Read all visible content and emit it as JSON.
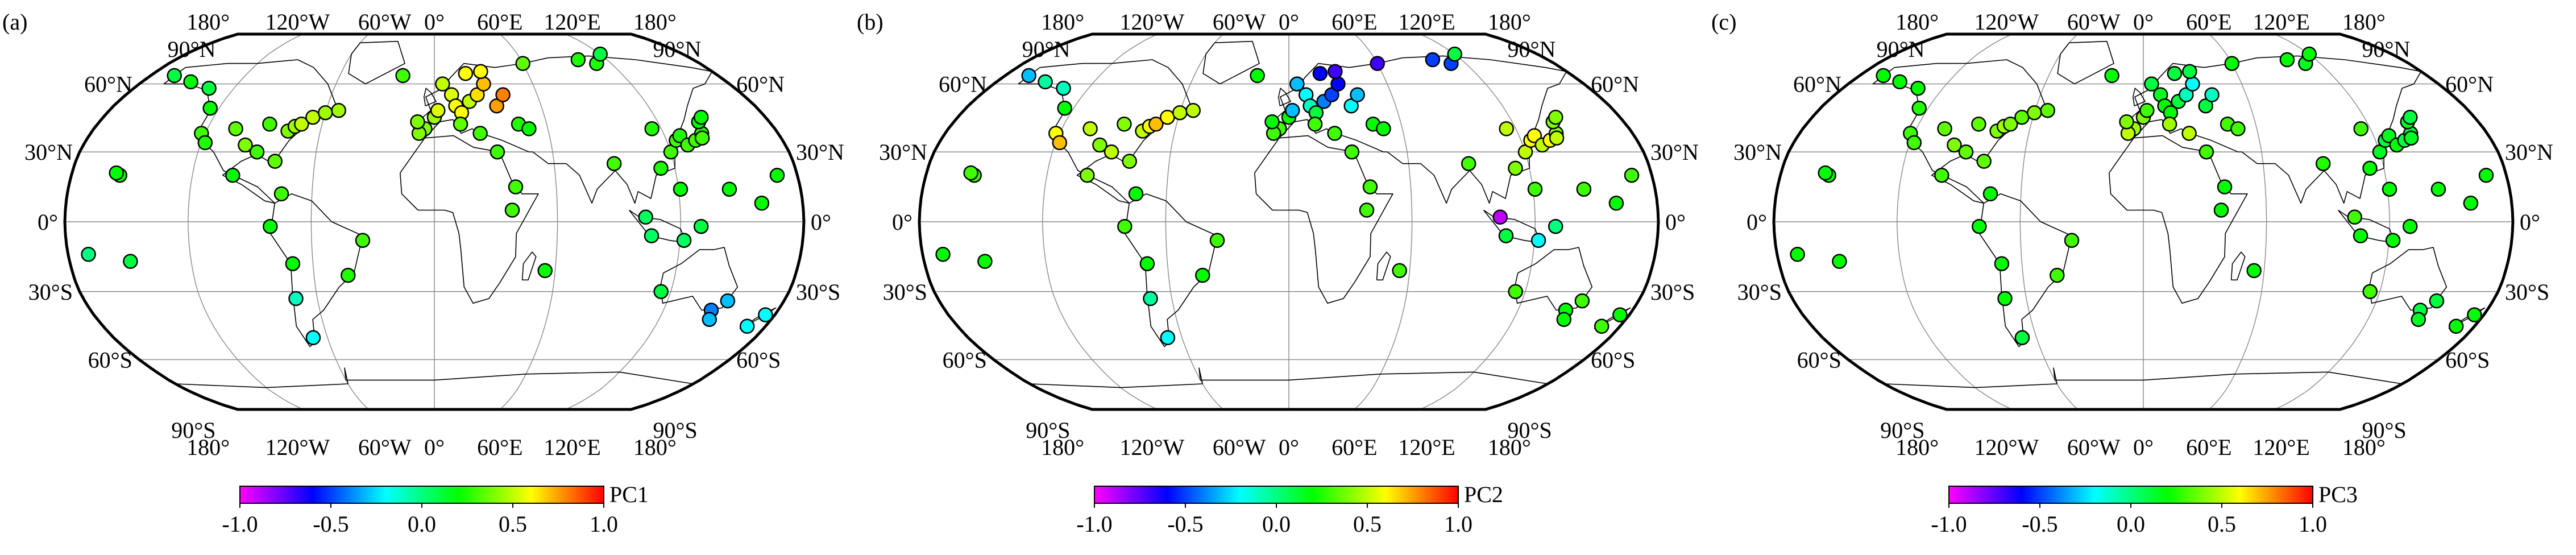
{
  "panels": [
    {
      "letter": "(a)",
      "colorbar_label": "PC1",
      "colorbar_ticks": [
        "-1.0",
        "-0.5",
        "0.0",
        "0.5",
        "1.0"
      ]
    },
    {
      "letter": "(b)",
      "colorbar_label": "PC2",
      "colorbar_ticks": [
        "-1.0",
        "-0.5",
        "0.0",
        "0.5",
        "1.0"
      ]
    },
    {
      "letter": "(c)",
      "colorbar_label": "PC3",
      "colorbar_ticks": [
        "-1.0",
        "-0.5",
        "0.0",
        "0.5",
        "1.0"
      ]
    }
  ],
  "axes": {
    "lon_labels": [
      "180°",
      "120°W",
      "60°W",
      "0°",
      "60°E",
      "120°E",
      "180°"
    ],
    "lat_labels_left": [
      "90°N",
      "60°N",
      "30°N",
      "0°",
      "30°S",
      "60°S",
      "90°S"
    ],
    "lat_labels_right": [
      "90°N",
      "60°N",
      "30°N",
      "0°",
      "30°S",
      "60°S",
      "90°S"
    ]
  },
  "colors": {
    "scale": [
      "#ff00ff",
      "#0000ff",
      "#00ffff",
      "#00ff00",
      "#ffff00",
      "#ff0000"
    ],
    "marker_edge": "#000000",
    "frame": "#000000",
    "grid": "#888888"
  },
  "stations": [
    [
      -150,
      61
    ],
    [
      -135,
      58
    ],
    [
      -125,
      49
    ],
    [
      -122,
      38
    ],
    [
      -118,
      34
    ],
    [
      -105,
      40
    ],
    [
      -97,
      33
    ],
    [
      -90,
      30
    ],
    [
      -88,
      42
    ],
    [
      -80,
      26
    ],
    [
      -77,
      39
    ],
    [
      -74,
      41
    ],
    [
      -71,
      42
    ],
    [
      -66,
      45
    ],
    [
      -60,
      47
    ],
    [
      -53,
      48
    ],
    [
      -156,
      20
    ],
    [
      -158,
      21
    ],
    [
      -165,
      64
    ],
    [
      -100,
      20
    ],
    [
      -80,
      -2
    ],
    [
      -70,
      -18
    ],
    [
      -71,
      -33
    ],
    [
      -68,
      -50
    ],
    [
      -43,
      -23
    ],
    [
      -35,
      -8
    ],
    [
      -150,
      -17
    ],
    [
      -170,
      -14
    ],
    [
      -20,
      64
    ],
    [
      5,
      60
    ],
    [
      10,
      55
    ],
    [
      12,
      50
    ],
    [
      15,
      47
    ],
    [
      20,
      52
    ],
    [
      25,
      55
    ],
    [
      30,
      60
    ],
    [
      35,
      50
    ],
    [
      40,
      55
    ],
    [
      0,
      45
    ],
    [
      -5,
      40
    ],
    [
      -8,
      38
    ],
    [
      -9,
      43
    ],
    [
      14,
      42
    ],
    [
      24,
      38
    ],
    [
      32,
      30
    ],
    [
      45,
      42
    ],
    [
      50,
      40
    ],
    [
      2,
      48
    ],
    [
      20,
      65
    ],
    [
      30,
      66
    ],
    [
      60,
      70
    ],
    [
      100,
      72
    ],
    [
      110,
      70
    ],
    [
      120,
      75
    ],
    [
      90,
      25
    ],
    [
      115,
      40
    ],
    [
      120,
      30
    ],
    [
      125,
      35
    ],
    [
      128,
      37
    ],
    [
      130,
      33
    ],
    [
      135,
      35
    ],
    [
      140,
      38
    ],
    [
      142,
      43
    ],
    [
      145,
      45
    ],
    [
      139,
      36
    ],
    [
      113,
      23
    ],
    [
      121,
      14
    ],
    [
      103,
      2
    ],
    [
      106,
      -6
    ],
    [
      122,
      -8
    ],
    [
      130,
      -2
    ],
    [
      115,
      -30
    ],
    [
      145,
      -38
    ],
    [
      151,
      -34
    ],
    [
      147,
      -42
    ],
    [
      170,
      -45
    ],
    [
      175,
      -40
    ],
    [
      160,
      8
    ],
    [
      145,
      14
    ],
    [
      170,
      20
    ],
    [
      55,
      -21
    ],
    [
      40,
      15
    ],
    [
      38,
      5
    ],
    [
      -75,
      12
    ]
  ],
  "chart_data": {
    "type": "scatter",
    "panels": [
      {
        "series_label": "PC1",
        "values": [
          0.2,
          0.1,
          0.2,
          0.3,
          0.25,
          0.35,
          0.4,
          0.3,
          0.3,
          0.35,
          0.4,
          0.45,
          0.5,
          0.5,
          0.45,
          0.45,
          0.2,
          0.2,
          0.1,
          0.2,
          0.2,
          0.2,
          -0.1,
          -0.2,
          0.25,
          0.3,
          0.1,
          0.0,
          0.3,
          0.5,
          0.55,
          0.6,
          0.6,
          0.5,
          0.65,
          0.7,
          0.75,
          0.8,
          0.45,
          0.4,
          0.4,
          0.4,
          0.35,
          0.3,
          0.3,
          0.25,
          0.2,
          0.55,
          0.6,
          0.6,
          0.35,
          0.25,
          0.25,
          0.1,
          0.3,
          0.25,
          0.3,
          0.3,
          0.25,
          0.3,
          0.3,
          0.25,
          0.2,
          0.2,
          0.3,
          0.25,
          0.2,
          0.05,
          0.05,
          0.05,
          0.1,
          0.1,
          -0.4,
          -0.3,
          -0.3,
          -0.2,
          -0.2,
          0.2,
          0.2,
          0.2,
          0.2,
          0.3,
          0.3,
          0.3
        ]
      },
      {
        "series_label": "PC2",
        "values": [
          -0.05,
          -0.1,
          0.2,
          0.6,
          0.7,
          0.5,
          0.4,
          0.5,
          0.4,
          0.4,
          0.5,
          0.6,
          0.7,
          0.6,
          0.5,
          0.5,
          0.3,
          0.3,
          -0.3,
          0.4,
          0.3,
          0.2,
          -0.05,
          -0.2,
          0.2,
          0.3,
          0.2,
          0.2,
          0.2,
          -0.3,
          -0.2,
          -0.1,
          0.1,
          -0.4,
          -0.5,
          -0.6,
          -0.2,
          -0.3,
          0.2,
          0.3,
          0.3,
          0.2,
          0.3,
          0.3,
          0.3,
          0.2,
          0.2,
          -0.3,
          -0.6,
          -0.7,
          -0.7,
          -0.5,
          -0.5,
          0.1,
          0.3,
          0.5,
          0.5,
          0.6,
          0.6,
          0.5,
          0.6,
          0.4,
          0.4,
          0.4,
          0.5,
          0.4,
          0.3,
          -0.9,
          0.1,
          -0.2,
          0.0,
          0.3,
          0.2,
          0.3,
          0.2,
          0.3,
          0.2,
          0.2,
          0.3,
          0.3,
          0.3,
          0.3,
          0.3,
          0.2
        ]
      },
      {
        "series_label": "PC3",
        "values": [
          0.2,
          0.2,
          0.25,
          0.3,
          0.3,
          0.35,
          0.4,
          0.35,
          0.35,
          0.35,
          0.4,
          0.45,
          0.4,
          0.35,
          0.4,
          0.35,
          0.2,
          0.2,
          0.2,
          0.3,
          0.2,
          0.2,
          0.2,
          0.1,
          0.3,
          0.3,
          0.2,
          0.2,
          0.2,
          0.1,
          0.15,
          0.2,
          0.2,
          0.1,
          -0.1,
          -0.2,
          0.1,
          -0.1,
          0.4,
          0.45,
          0.5,
          0.4,
          0.45,
          0.5,
          0.3,
          0.3,
          0.3,
          0.3,
          0.1,
          0.1,
          0.2,
          0.2,
          0.15,
          0.2,
          0.25,
          0.3,
          0.15,
          0.1,
          0.15,
          0.2,
          0.1,
          0.1,
          0.15,
          0.1,
          0.15,
          0.2,
          0.2,
          0.3,
          0.2,
          0.2,
          0.2,
          0.3,
          0.1,
          0.1,
          0.15,
          0.2,
          0.2,
          0.2,
          0.2,
          0.2,
          0.2,
          0.2,
          0.2,
          0.2
        ]
      }
    ],
    "color_range": [
      -1.0,
      1.0
    ],
    "grid": true,
    "legend": "colorbar-bottom"
  }
}
